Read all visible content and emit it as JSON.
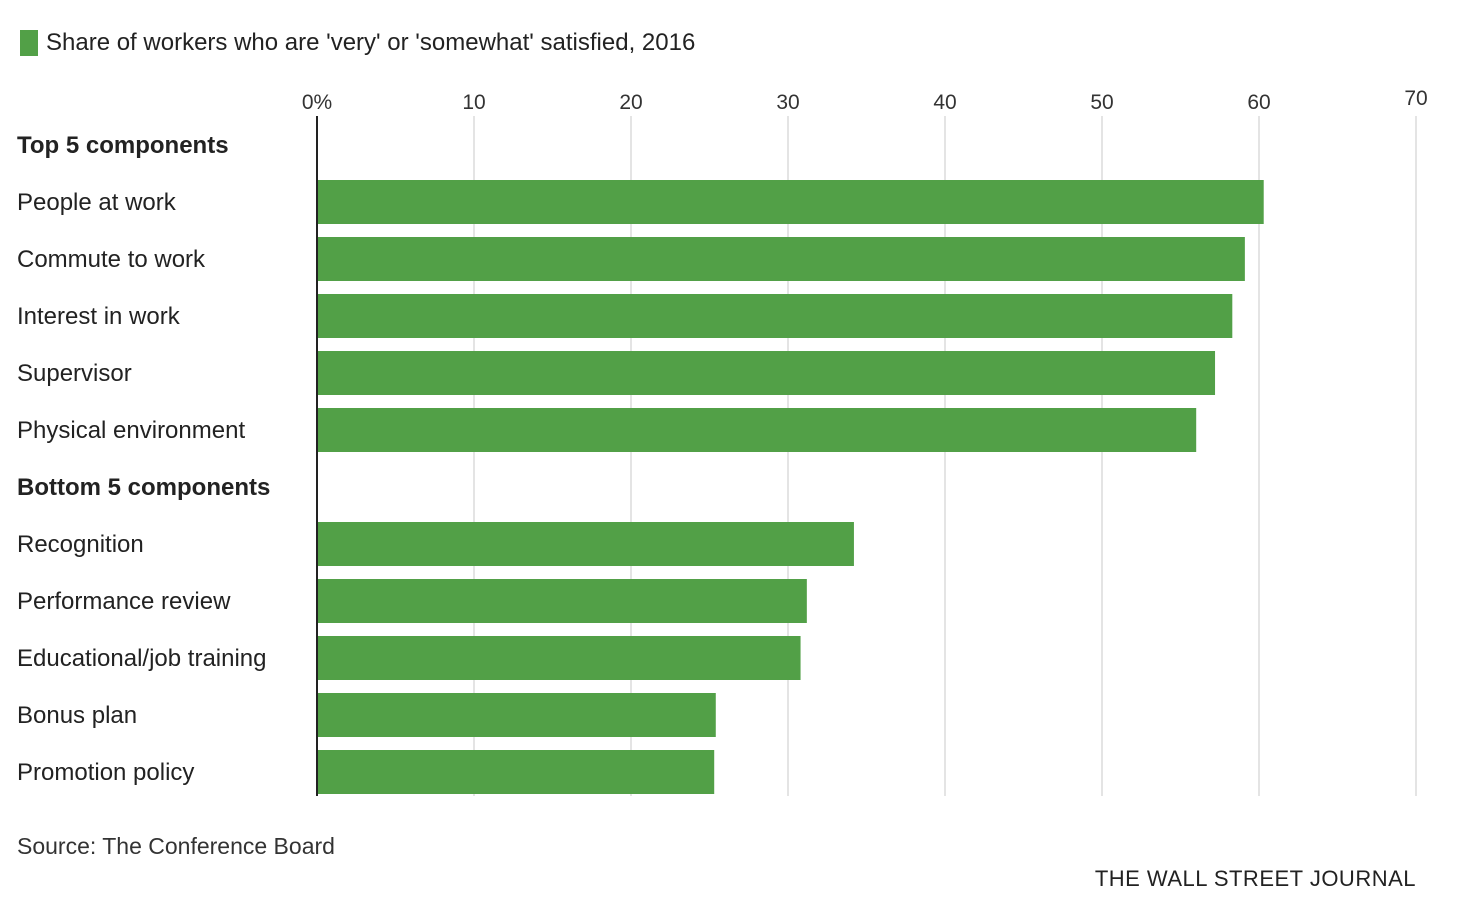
{
  "legend": {
    "label": "Share of workers who are 'very' or 'somewhat' satisfied, 2016",
    "color": "#52a047"
  },
  "source": "Source: The Conference Board",
  "credit": "THE WALL STREET JOURNAL",
  "chart_data": {
    "type": "bar",
    "orientation": "horizontal",
    "xlim": [
      0,
      70
    ],
    "ticks": [
      0,
      10,
      20,
      30,
      40,
      50,
      60,
      70
    ],
    "tick_labels": [
      "0%",
      "10",
      "20",
      "30",
      "40",
      "50",
      "60",
      "70"
    ],
    "grid": true,
    "bar_color": "#52a047",
    "groups": [
      {
        "label": "Top 5 components",
        "categories": [
          "People at work",
          "Commute to work",
          "Interest in work",
          "Supervisor",
          "Physical environment"
        ],
        "values": [
          60.3,
          59.1,
          58.3,
          57.2,
          56.0
        ]
      },
      {
        "label": "Bottom 5 components",
        "categories": [
          "Recognition",
          "Performance review",
          "Educational/job training",
          "Bonus plan",
          "Promotion policy"
        ],
        "values": [
          34.2,
          31.2,
          30.8,
          25.4,
          25.3
        ]
      }
    ]
  }
}
